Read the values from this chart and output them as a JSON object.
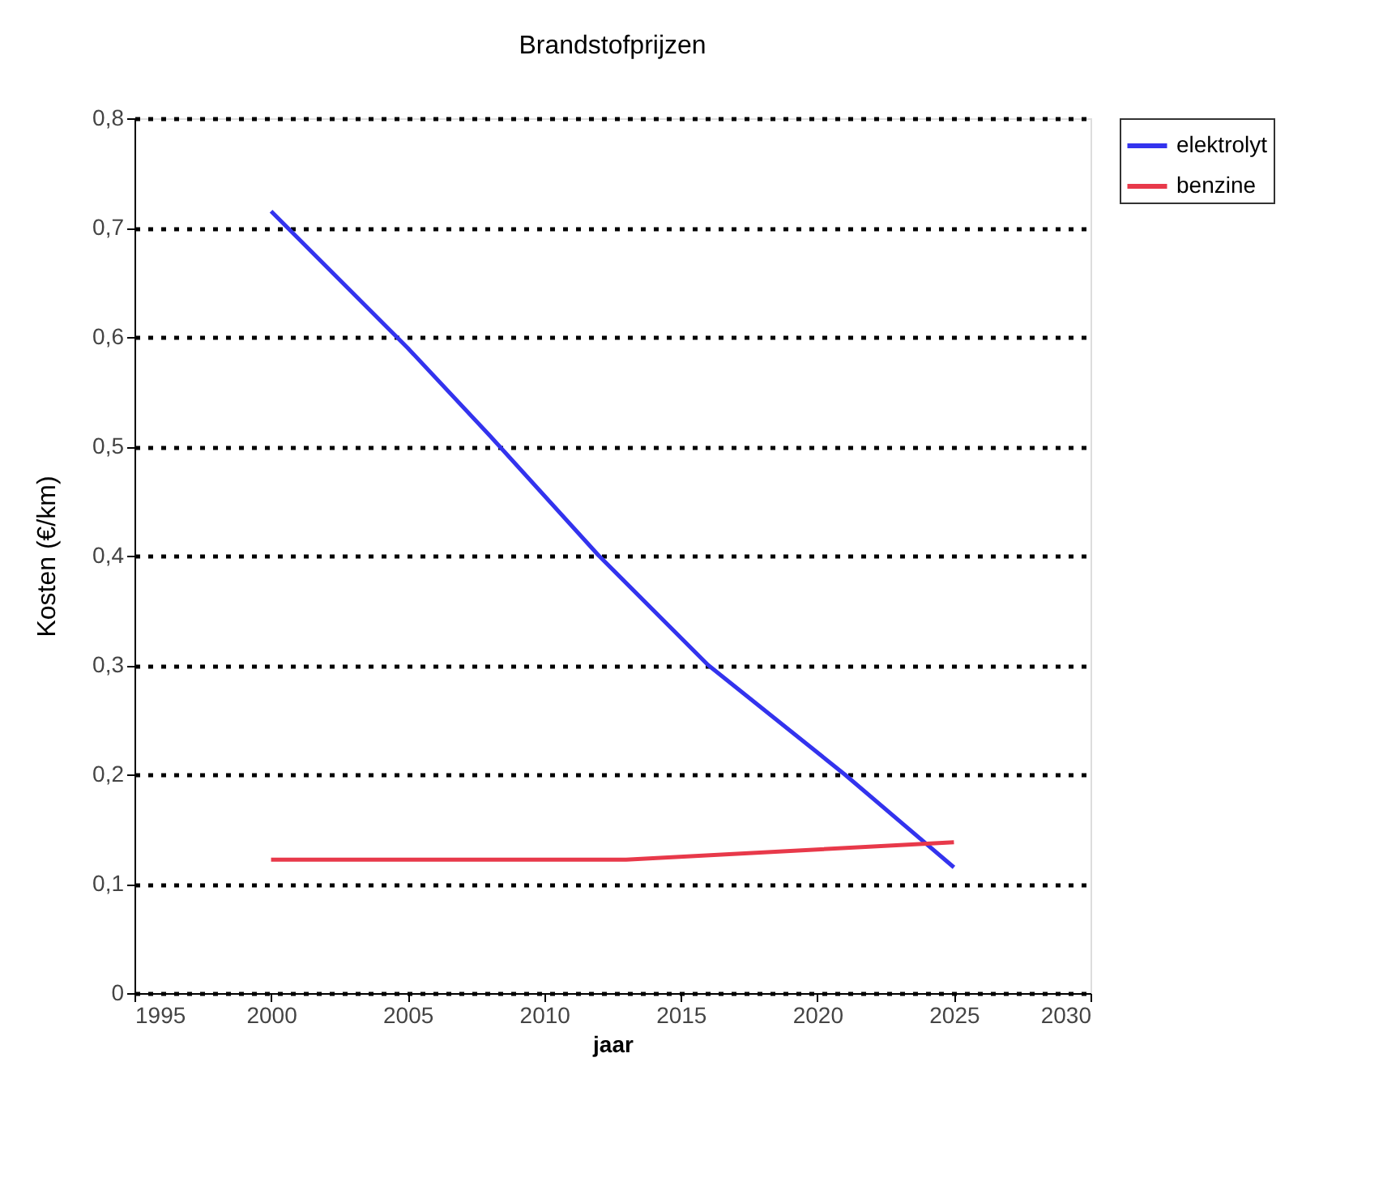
{
  "chart_data": {
    "type": "line",
    "title": "Brandstofprijzen",
    "xlabel": "jaar",
    "ylabel": "Kosten (€/km)",
    "xlim": [
      1995,
      2030
    ],
    "xticks": [
      1995,
      2000,
      2005,
      2010,
      2015,
      2020,
      2025,
      2030
    ],
    "ylim": [
      0,
      0.8
    ],
    "yticks": [
      0,
      {
        "value": 0.1,
        "label": "0,1"
      },
      {
        "value": 0.2,
        "label": "0,2"
      },
      {
        "value": 0.3,
        "label": "0,3"
      },
      {
        "value": 0.4,
        "label": "0,4"
      },
      {
        "value": 0.5,
        "label": "0,5"
      },
      {
        "value": 0.6,
        "label": "0,6"
      },
      {
        "value": 0.7,
        "label": "0,7"
      },
      {
        "value": 0.8,
        "label": "0,8"
      }
    ],
    "grid": "y",
    "legend": "right",
    "line_style": "solid",
    "marker": "none",
    "series": [
      {
        "name": "elektrolyt",
        "color": "#3333ee",
        "x": [
          2000,
          2005,
          2008,
          2012,
          2016,
          2021,
          2025
        ],
        "values": [
          0.715,
          0.59,
          0.51,
          0.4,
          0.3,
          0.2,
          0.115
        ]
      },
      {
        "name": "benzine",
        "color": "#e8394a",
        "x": [
          2000,
          2013,
          2025
        ],
        "values": [
          0.122,
          0.122,
          0.138
        ]
      }
    ]
  }
}
